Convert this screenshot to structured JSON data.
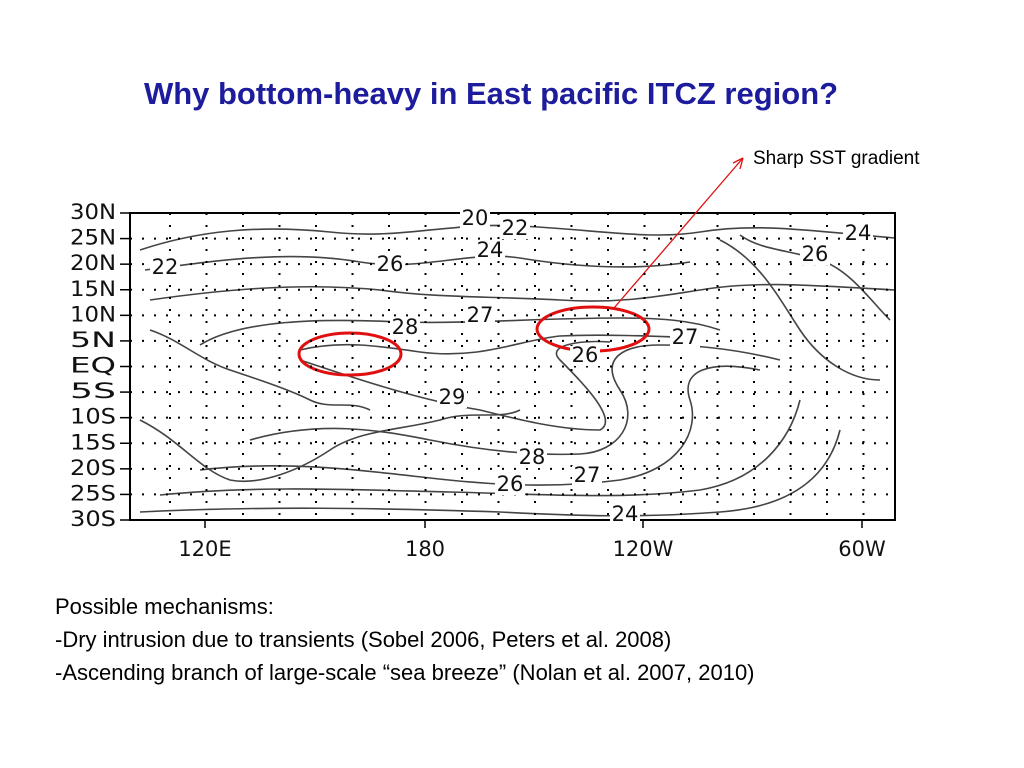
{
  "title": "Why bottom-heavy in East pacific ITCZ region?",
  "annotation": "Sharp SST gradient",
  "map": {
    "lat_labels": [
      "30N",
      "25N",
      "20N",
      "15N",
      "10N",
      "5N",
      "EQ",
      "5S",
      "10S",
      "15S",
      "20S",
      "25S",
      "30S"
    ],
    "lon_labels": [
      "120E",
      "180",
      "120W",
      "60W"
    ],
    "contour_labels": [
      "20",
      "22",
      "24",
      "22",
      "26",
      "28",
      "27",
      "26",
      "27",
      "29",
      "28",
      "27",
      "26",
      "24",
      "24",
      "26"
    ]
  },
  "body": {
    "heading": "Possible mechanisms:",
    "items": [
      "-Dry intrusion due to transients (Sobel 2006, Peters et al. 2008)",
      "-Ascending branch of large-scale “sea breeze” (Nolan et al. 2007, 2010)"
    ]
  }
}
